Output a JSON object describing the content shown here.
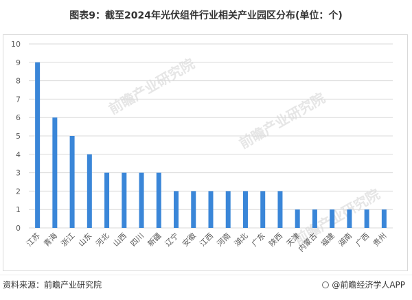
{
  "title": "图表9：截至2024年光伏组件行业相关产业园区分布(单位：个)",
  "source": "资料来源：前瞻产业研究院",
  "brand": "@前瞻经济学人APP",
  "watermark": "前瞻产业研究院",
  "colors": {
    "bar": "#3a86d8",
    "grid": "#d9d9d9",
    "text": "#595959"
  },
  "chart_data": {
    "type": "bar",
    "categories": [
      "江苏",
      "青海",
      "浙江",
      "山东",
      "河北",
      "山西",
      "四川",
      "新疆",
      "辽宁",
      "安徽",
      "江西",
      "河南",
      "湖北",
      "广东",
      "陕西",
      "天津",
      "内蒙古",
      "福建",
      "湖南",
      "广西",
      "贵州"
    ],
    "values": [
      9,
      6,
      5,
      4,
      3,
      3,
      3,
      3,
      2,
      2,
      2,
      2,
      2,
      2,
      2,
      1,
      1,
      1,
      1,
      1,
      1
    ],
    "yticks": [
      "0",
      "1",
      "2",
      "3",
      "4",
      "5",
      "6",
      "7",
      "8",
      "9",
      "10"
    ],
    "ylim": [
      0,
      10
    ],
    "grid": true
  }
}
